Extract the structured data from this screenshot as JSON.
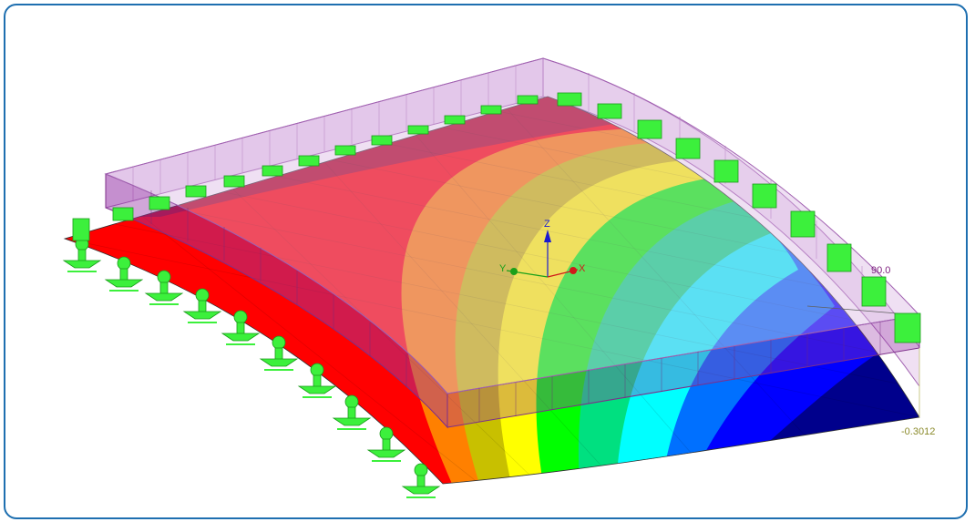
{
  "labels": {
    "top_value": "90.0",
    "bottom_value": "-0.3012",
    "axis_x": "X",
    "axis_y": "Y",
    "axis_z": "Z"
  },
  "colors": {
    "frame_border": "#1e6fb0",
    "top_value": "#7d1e7d",
    "bottom_value": "#8a8a2a",
    "support_green": "#3cf03c",
    "load_fill": "#e3c6ea",
    "load_stroke": "#a060b0",
    "contour_scale": [
      "#b0001e",
      "#ff0000",
      "#ff8000",
      "#d8c800",
      "#ffff00",
      "#00ff00",
      "#00e080",
      "#00ffff",
      "#0090ff",
      "#0000ff",
      "#0000a0"
    ]
  }
}
